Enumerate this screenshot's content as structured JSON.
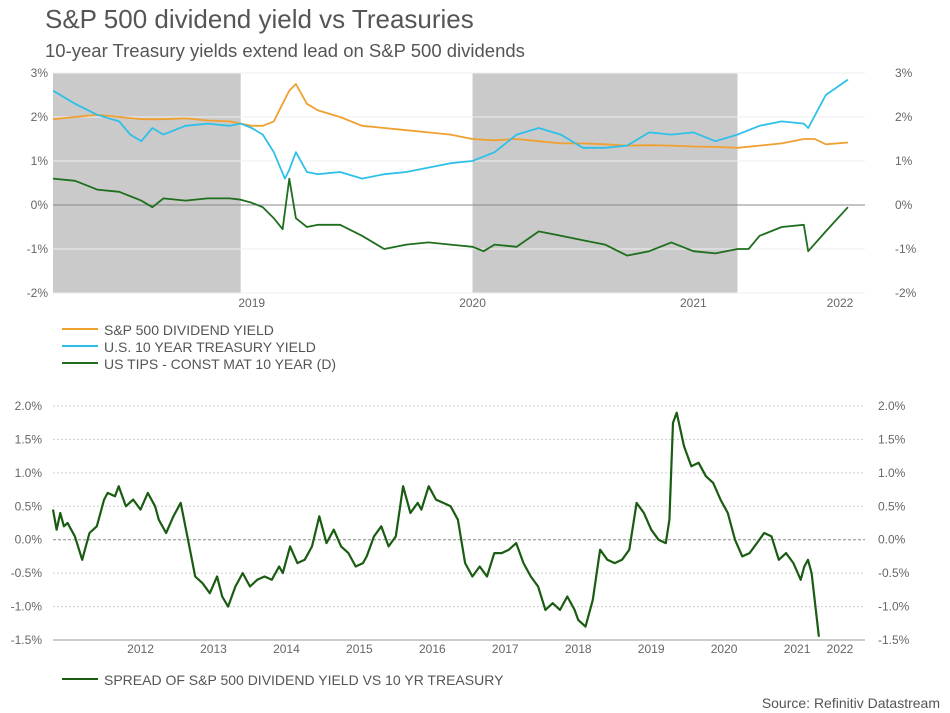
{
  "header": {
    "title": "S&P 500 dividend yield vs Treasuries",
    "subtitle": "10-year Treasury yields extend lead on S&P 500 dividends"
  },
  "footer": {
    "source": "Source: Refinitiv Datastream"
  },
  "colors": {
    "dividend": "#f0a030",
    "treasury": "#2ec0e8",
    "tips": "#1e6e1e",
    "spread": "#1a5c12",
    "shading": "#cacaca",
    "zero_line": "#888888",
    "grid": "#dddddd",
    "text": "#555555"
  },
  "chart_data": [
    {
      "type": "line",
      "title": "S&P 500 dividend yield vs Treasuries",
      "xlabel": "",
      "ylabel": "",
      "ylim": [
        -2,
        3
      ],
      "yticks": [
        "3%",
        "2%",
        "1%",
        "0%",
        "-1%",
        "-2%"
      ],
      "ytick_values": [
        3,
        2,
        1,
        0,
        -1,
        -2
      ],
      "xticks": [
        "2019",
        "2020",
        "2021",
        "2022"
      ],
      "xtick_values": [
        2019,
        2020,
        2021,
        2022
      ],
      "xlim": [
        2018.6,
        2022.3
      ],
      "grid": true,
      "legend_position": "bottom-left",
      "shaded_periods": [
        [
          2018.6,
          2019.45
        ],
        [
          2020.5,
          2021.7
        ]
      ],
      "series": [
        {
          "name": "S&P 500 DIVIDEND YIELD",
          "key": "dividend",
          "x": [
            2018.6,
            2018.7,
            2018.8,
            2018.9,
            2019.0,
            2019.1,
            2019.2,
            2019.3,
            2019.4,
            2019.45,
            2019.5,
            2019.55,
            2019.6,
            2019.64,
            2019.67,
            2019.7,
            2019.75,
            2019.8,
            2019.9,
            2020.0,
            2020.1,
            2020.2,
            2020.3,
            2020.4,
            2020.5,
            2020.6,
            2020.7,
            2020.8,
            2020.9,
            2021.0,
            2021.1,
            2021.2,
            2021.3,
            2021.4,
            2021.5,
            2021.6,
            2021.7,
            2021.8,
            2021.9,
            2022.0,
            2022.05,
            2022.1,
            2022.2
          ],
          "y": [
            1.95,
            2.0,
            2.05,
            2.0,
            1.95,
            1.95,
            1.97,
            1.92,
            1.9,
            1.85,
            1.8,
            1.8,
            1.9,
            2.3,
            2.6,
            2.75,
            2.3,
            2.15,
            2.0,
            1.8,
            1.75,
            1.7,
            1.65,
            1.6,
            1.5,
            1.47,
            1.5,
            1.45,
            1.4,
            1.4,
            1.38,
            1.35,
            1.36,
            1.35,
            1.33,
            1.32,
            1.3,
            1.35,
            1.4,
            1.5,
            1.5,
            1.38,
            1.42
          ]
        },
        {
          "name": "U.S. 10 YEAR TREASURY YIELD",
          "key": "treasury",
          "x": [
            2018.6,
            2018.7,
            2018.8,
            2018.9,
            2018.95,
            2019.0,
            2019.05,
            2019.1,
            2019.2,
            2019.3,
            2019.4,
            2019.45,
            2019.5,
            2019.55,
            2019.6,
            2019.65,
            2019.67,
            2019.7,
            2019.75,
            2019.8,
            2019.9,
            2020.0,
            2020.1,
            2020.2,
            2020.3,
            2020.4,
            2020.5,
            2020.55,
            2020.6,
            2020.7,
            2020.8,
            2020.9,
            2021.0,
            2021.1,
            2021.2,
            2021.3,
            2021.4,
            2021.5,
            2021.6,
            2021.7,
            2021.8,
            2021.9,
            2022.0,
            2022.02,
            2022.1,
            2022.2
          ],
          "y": [
            2.6,
            2.3,
            2.05,
            1.9,
            1.6,
            1.45,
            1.75,
            1.6,
            1.8,
            1.85,
            1.8,
            1.85,
            1.75,
            1.6,
            1.2,
            0.6,
            0.8,
            1.2,
            0.75,
            0.7,
            0.75,
            0.6,
            0.7,
            0.75,
            0.85,
            0.95,
            1.0,
            1.1,
            1.2,
            1.6,
            1.75,
            1.6,
            1.3,
            1.3,
            1.35,
            1.65,
            1.6,
            1.65,
            1.45,
            1.6,
            1.8,
            1.9,
            1.85,
            1.75,
            2.5,
            2.85
          ]
        },
        {
          "name": "US TIPS - CONST MAT 10 YEAR (D)",
          "key": "tips",
          "x": [
            2018.6,
            2018.7,
            2018.8,
            2018.9,
            2019.0,
            2019.05,
            2019.1,
            2019.2,
            2019.3,
            2019.4,
            2019.45,
            2019.5,
            2019.55,
            2019.6,
            2019.64,
            2019.67,
            2019.7,
            2019.75,
            2019.8,
            2019.9,
            2020.0,
            2020.1,
            2020.2,
            2020.3,
            2020.4,
            2020.5,
            2020.55,
            2020.6,
            2020.7,
            2020.8,
            2020.9,
            2021.0,
            2021.1,
            2021.2,
            2021.3,
            2021.4,
            2021.5,
            2021.6,
            2021.7,
            2021.75,
            2021.8,
            2021.9,
            2022.0,
            2022.02,
            2022.1,
            2022.2
          ],
          "y": [
            0.6,
            0.55,
            0.35,
            0.3,
            0.1,
            -0.05,
            0.15,
            0.1,
            0.15,
            0.15,
            0.12,
            0.05,
            -0.05,
            -0.3,
            -0.55,
            0.6,
            -0.3,
            -0.5,
            -0.45,
            -0.45,
            -0.7,
            -1.0,
            -0.9,
            -0.85,
            -0.9,
            -0.95,
            -1.05,
            -0.9,
            -0.95,
            -0.6,
            -0.7,
            -0.8,
            -0.9,
            -1.15,
            -1.05,
            -0.85,
            -1.05,
            -1.1,
            -1.0,
            -1.0,
            -0.7,
            -0.5,
            -0.45,
            -1.05,
            -0.6,
            -0.05
          ]
        }
      ]
    },
    {
      "type": "line",
      "title": "",
      "xlabel": "",
      "ylabel": "",
      "ylim": [
        -1.5,
        2.0
      ],
      "yticks": [
        "2.0%",
        "1.5%",
        "1.0%",
        "0.5%",
        "0.0%",
        "-0.5%",
        "-1.0%",
        "-1.5%"
      ],
      "ytick_values": [
        2.0,
        1.5,
        1.0,
        0.5,
        0.0,
        -0.5,
        -1.0,
        -1.5
      ],
      "xticks": [
        "2012",
        "2013",
        "2014",
        "2015",
        "2016",
        "2017",
        "2018",
        "2019",
        "2020",
        "2021",
        "2022"
      ],
      "xtick_values": [
        2012,
        2013,
        2014,
        2015,
        2016,
        2017,
        2018,
        2019,
        2020,
        2021,
        2022
      ],
      "xlim": [
        2011.3,
        2022.5
      ],
      "grid": true,
      "legend_position": "bottom-left",
      "series": [
        {
          "name": "SPREAD OF S&P 500 DIVIDEND YIELD VS 10 YR TREASURY",
          "key": "spread",
          "x": [
            2011.3,
            2011.35,
            2011.4,
            2011.45,
            2011.5,
            2011.55,
            2011.6,
            2011.7,
            2011.75,
            2011.8,
            2011.9,
            2012.0,
            2012.05,
            2012.15,
            2012.2,
            2012.3,
            2012.4,
            2012.5,
            2012.6,
            2012.7,
            2012.75,
            2012.85,
            2012.95,
            2013.05,
            2013.15,
            2013.25,
            2013.35,
            2013.45,
            2013.55,
            2013.62,
            2013.7,
            2013.8,
            2013.9,
            2014.0,
            2014.1,
            2014.2,
            2014.3,
            2014.4,
            2014.45,
            2014.55,
            2014.65,
            2014.75,
            2014.85,
            2014.95,
            2015.05,
            2015.15,
            2015.25,
            2015.35,
            2015.45,
            2015.55,
            2015.6,
            2015.7,
            2015.8,
            2015.9,
            2016.0,
            2016.1,
            2016.2,
            2016.3,
            2016.35,
            2016.45,
            2016.55,
            2016.65,
            2016.75,
            2016.85,
            2016.95,
            2017.05,
            2017.15,
            2017.25,
            2017.35,
            2017.45,
            2017.55,
            2017.65,
            2017.75,
            2017.85,
            2017.95,
            2018.05,
            2018.15,
            2018.25,
            2018.35,
            2018.45,
            2018.5,
            2018.6,
            2018.7,
            2018.8,
            2018.9,
            2019.0,
            2019.1,
            2019.2,
            2019.3,
            2019.4,
            2019.5,
            2019.6,
            2019.7,
            2019.75,
            2019.8,
            2019.85,
            2019.95,
            2020.05,
            2020.15,
            2020.25,
            2020.35,
            2020.45,
            2020.55,
            2020.65,
            2020.75,
            2020.85,
            2020.95,
            2021.05,
            2021.15,
            2021.25,
            2021.35,
            2021.45,
            2021.55,
            2021.6,
            2021.65,
            2021.7,
            2021.8
          ],
          "y": [
            0.45,
            0.15,
            0.4,
            0.2,
            0.25,
            0.15,
            0.05,
            -0.3,
            -0.1,
            0.1,
            0.2,
            0.6,
            0.7,
            0.65,
            0.8,
            0.5,
            0.6,
            0.45,
            0.7,
            0.5,
            0.3,
            0.1,
            0.35,
            0.55,
            0.0,
            -0.55,
            -0.65,
            -0.8,
            -0.55,
            -0.85,
            -1.0,
            -0.7,
            -0.5,
            -0.7,
            -0.6,
            -0.55,
            -0.6,
            -0.4,
            -0.5,
            -0.1,
            -0.35,
            -0.3,
            -0.1,
            0.35,
            -0.05,
            0.15,
            -0.1,
            -0.2,
            -0.4,
            -0.35,
            -0.25,
            0.05,
            0.2,
            -0.1,
            0.05,
            0.8,
            0.4,
            0.55,
            0.45,
            0.8,
            0.6,
            0.55,
            0.5,
            0.3,
            -0.35,
            -0.55,
            -0.4,
            -0.55,
            -0.2,
            -0.2,
            -0.15,
            -0.05,
            -0.35,
            -0.55,
            -0.7,
            -1.05,
            -0.95,
            -1.05,
            -0.85,
            -1.05,
            -1.2,
            -1.3,
            -0.9,
            -0.15,
            -0.3,
            -0.35,
            -0.3,
            -0.15,
            0.55,
            0.4,
            0.15,
            0.0,
            -0.05,
            0.3,
            1.75,
            1.9,
            1.4,
            1.1,
            1.15,
            0.95,
            0.85,
            0.6,
            0.4,
            0.0,
            -0.25,
            -0.2,
            -0.05,
            0.1,
            0.05,
            -0.3,
            -0.2,
            -0.35,
            -0.6,
            -0.4,
            -0.3,
            -0.5,
            -1.45
          ]
        }
      ]
    }
  ]
}
